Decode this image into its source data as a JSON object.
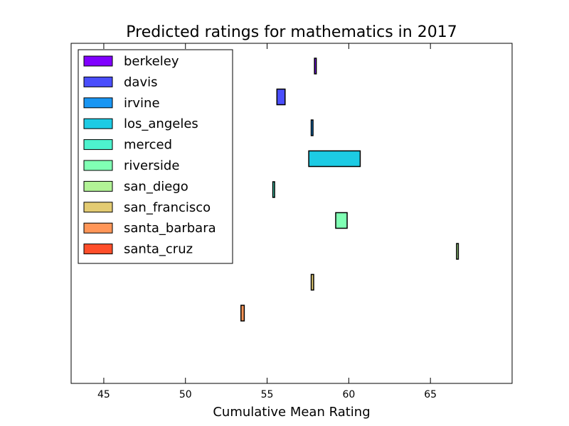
{
  "chart_data": {
    "type": "bar",
    "orientation": "horizontal-range",
    "title": "Predicted ratings for mathematics in 2017",
    "xlabel": "Cumulative Mean Rating",
    "ylabel": "",
    "xlim": [
      43,
      70
    ],
    "xticks": [
      45,
      50,
      55,
      60,
      65
    ],
    "grid": false,
    "legend_position": "upper-left",
    "series": [
      {
        "name": "berkeley",
        "color": "#8000ff",
        "low": 57.9,
        "high": 58.0
      },
      {
        "name": "davis",
        "color": "#4a4efc",
        "low": 55.6,
        "high": 56.1
      },
      {
        "name": "irvine",
        "color": "#1996f3",
        "low": 57.7,
        "high": 57.8
      },
      {
        "name": "los_angeles",
        "color": "#1dcbe4",
        "low": 57.55,
        "high": 60.7
      },
      {
        "name": "merced",
        "color": "#4df3ce",
        "low": 55.35,
        "high": 55.45
      },
      {
        "name": "riverside",
        "color": "#80ffb4",
        "low": 59.2,
        "high": 59.9
      },
      {
        "name": "san_diego",
        "color": "#b2f396",
        "low": 66.6,
        "high": 66.7
      },
      {
        "name": "san_francisco",
        "color": "#e3cb72",
        "low": 57.7,
        "high": 57.85
      },
      {
        "name": "santa_barbara",
        "color": "#ff9658",
        "low": 53.4,
        "high": 53.6
      },
      {
        "name": "santa_cruz",
        "color": "#ff4e2a",
        "low": null,
        "high": null
      }
    ]
  }
}
